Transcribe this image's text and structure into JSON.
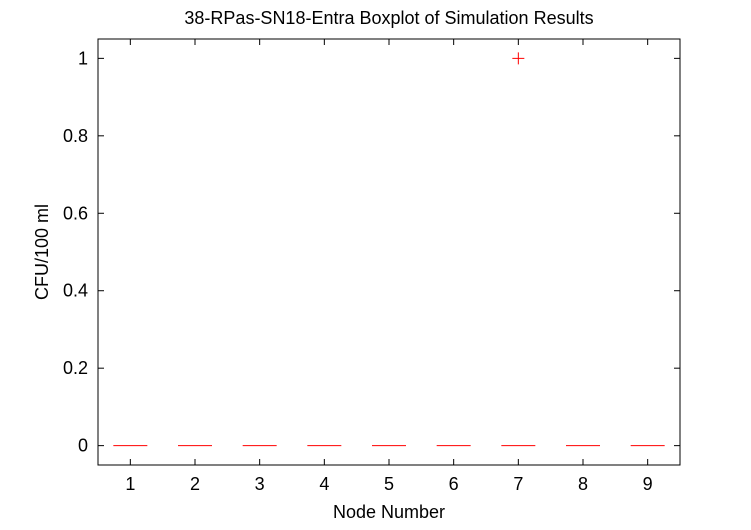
{
  "chart_data": {
    "type": "boxplot",
    "title": "38-RPas-SN18-Entra Boxplot of Simulation Results",
    "xlabel": "Node Number",
    "ylabel": "CFU/100 ml",
    "categories": [
      "1",
      "2",
      "3",
      "4",
      "5",
      "6",
      "7",
      "8",
      "9"
    ],
    "medians": [
      0,
      0,
      0,
      0,
      0,
      0,
      0,
      0,
      0
    ],
    "outliers": [
      {
        "category": "7",
        "value": 1
      }
    ],
    "xlim": [
      0.5,
      9.5
    ],
    "ylim": [
      -0.05,
      1.05
    ],
    "yticks": [
      0,
      0.2,
      0.4,
      0.6,
      0.8,
      1
    ],
    "ytick_labels": [
      "0",
      "0.2",
      "0.4",
      "0.6",
      "0.8",
      "1"
    ],
    "grid": false,
    "colors": {
      "median": "#ff0000",
      "outlier": "#ff0000",
      "axes": "#000000"
    }
  }
}
